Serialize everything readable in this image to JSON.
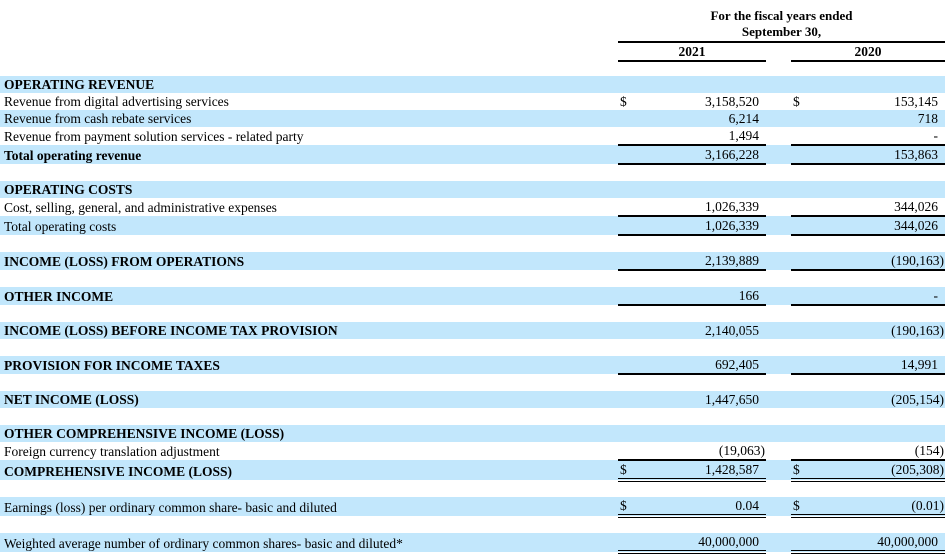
{
  "header": {
    "title_line1": "For the fiscal years ended",
    "title_line2": "September 30,",
    "columns": [
      "2021",
      "2020"
    ]
  },
  "colors": {
    "row_highlight": "#c2e7fc",
    "text": "#000000",
    "rule": "#000000"
  },
  "rows": [
    {
      "type": "row",
      "label": "OPERATING REVENUE",
      "bold": true,
      "highlight": true,
      "dollar_2021": "",
      "value_2021": "",
      "dollar_2020": "",
      "value_2020": "",
      "underline": "none"
    },
    {
      "type": "row",
      "label": "Revenue from digital advertising services",
      "bold": false,
      "highlight": false,
      "dollar_2021": "$",
      "value_2021": "3,158,520",
      "dollar_2020": "$",
      "value_2020": "153,145",
      "underline": "none"
    },
    {
      "type": "row",
      "label": "Revenue from cash rebate services",
      "bold": false,
      "highlight": true,
      "dollar_2021": "",
      "value_2021": "6,214",
      "dollar_2020": "",
      "value_2020": "718",
      "underline": "none"
    },
    {
      "type": "row",
      "label": "Revenue from payment solution services - related party",
      "bold": false,
      "highlight": false,
      "dollar_2021": "",
      "value_2021": "1,494",
      "dollar_2020": "",
      "value_2020": "-",
      "underline": "single"
    },
    {
      "type": "row",
      "label": "Total operating revenue",
      "bold": true,
      "highlight": true,
      "dollar_2021": "",
      "value_2021": "3,166,228",
      "dollar_2020": "",
      "value_2020": "153,863",
      "underline": "single"
    },
    {
      "type": "spacer"
    },
    {
      "type": "row",
      "label": "OPERATING COSTS",
      "bold": true,
      "highlight": true,
      "dollar_2021": "",
      "value_2021": "",
      "dollar_2020": "",
      "value_2020": "",
      "underline": "none"
    },
    {
      "type": "row",
      "label": "Cost, selling, general, and administrative expenses",
      "bold": false,
      "highlight": false,
      "dollar_2021": "",
      "value_2021": "1,026,339",
      "dollar_2020": "",
      "value_2020": "344,026",
      "underline": "single"
    },
    {
      "type": "row",
      "label": "Total operating costs",
      "bold": false,
      "highlight": true,
      "dollar_2021": "",
      "value_2021": "1,026,339",
      "dollar_2020": "",
      "value_2020": "344,026",
      "underline": "single"
    },
    {
      "type": "spacer"
    },
    {
      "type": "row",
      "label": "INCOME (LOSS) FROM OPERATIONS",
      "bold": true,
      "highlight": true,
      "dollar_2021": "",
      "value_2021": "2,139,889",
      "dollar_2020": "",
      "value_2020": "(190,163)",
      "underline": "single"
    },
    {
      "type": "spacer"
    },
    {
      "type": "row",
      "label": "OTHER INCOME",
      "bold": true,
      "highlight": true,
      "dollar_2021": "",
      "value_2021": "166",
      "dollar_2020": "",
      "value_2020": "-",
      "underline": "single"
    },
    {
      "type": "spacer"
    },
    {
      "type": "row",
      "label": "INCOME (LOSS) BEFORE INCOME TAX PROVISION",
      "bold": true,
      "highlight": true,
      "dollar_2021": "",
      "value_2021": "2,140,055",
      "dollar_2020": "",
      "value_2020": "(190,163)",
      "underline": "none"
    },
    {
      "type": "spacer"
    },
    {
      "type": "row",
      "label": "PROVISION FOR INCOME TAXES",
      "bold": true,
      "highlight": true,
      "dollar_2021": "",
      "value_2021": "692,405",
      "dollar_2020": "",
      "value_2020": "14,991",
      "underline": "single"
    },
    {
      "type": "spacer"
    },
    {
      "type": "row",
      "label": "NET INCOME (LOSS)",
      "bold": true,
      "highlight": true,
      "dollar_2021": "",
      "value_2021": "1,447,650",
      "dollar_2020": "",
      "value_2020": "(205,154)",
      "underline": "none"
    },
    {
      "type": "spacer"
    },
    {
      "type": "row",
      "label": "OTHER COMPREHENSIVE INCOME (LOSS)",
      "bold": true,
      "highlight": true,
      "dollar_2021": "",
      "value_2021": "",
      "dollar_2020": "",
      "value_2020": "",
      "underline": "none"
    },
    {
      "type": "row",
      "label": "Foreign currency translation adjustment",
      "bold": false,
      "highlight": false,
      "dollar_2021": "",
      "value_2021": "(19,063)",
      "dollar_2020": "",
      "value_2020": "(154)",
      "underline": "single"
    },
    {
      "type": "row",
      "label": "COMPREHENSIVE INCOME (LOSS)",
      "bold": true,
      "highlight": true,
      "dollar_2021": "$",
      "value_2021": "1,428,587",
      "dollar_2020": "$",
      "value_2020": "(205,308)",
      "underline": "double"
    },
    {
      "type": "spacer"
    },
    {
      "type": "row",
      "label": "Earnings (loss) per ordinary common share- basic and diluted",
      "bold": false,
      "highlight": true,
      "dollar_2021": "$",
      "value_2021": "0.04",
      "dollar_2020": "$",
      "value_2020": "(0.01)",
      "underline": "double"
    },
    {
      "type": "spacer"
    },
    {
      "type": "row",
      "label": "Weighted average number of ordinary common shares- basic and diluted*",
      "bold": false,
      "highlight": true,
      "dollar_2021": "",
      "value_2021": "40,000,000",
      "dollar_2020": "",
      "value_2020": "40,000,000",
      "underline": "double"
    }
  ]
}
